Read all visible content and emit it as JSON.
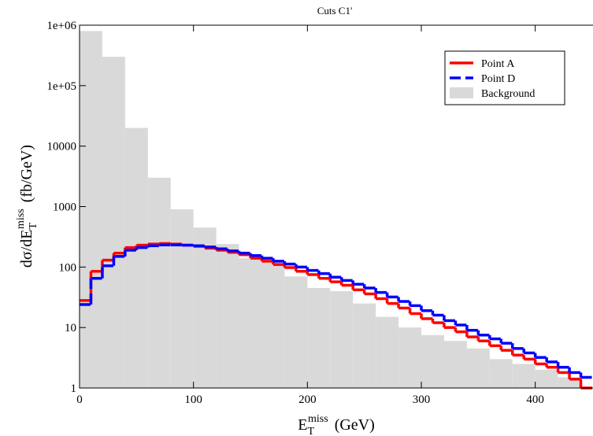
{
  "chart_data": {
    "type": "histogram",
    "title": "Cuts C1'",
    "x_label": {
      "base": "E",
      "sub": "T",
      "sup": "miss",
      "unit": "(GeV)"
    },
    "y_label": {
      "base": "dσ/dE",
      "sub": "T",
      "sup": "miss",
      "unit": "(fb/GeV)"
    },
    "xlim": [
      0,
      450
    ],
    "xticks": [
      0,
      100,
      200,
      300,
      400
    ],
    "ylim": [
      1,
      1000000
    ],
    "log_y": true,
    "yticks": [
      1,
      10,
      100,
      1000,
      10000,
      {
        "value": 100000,
        "label": "1e+05"
      },
      {
        "value": 1000000,
        "label": "1e+06"
      }
    ],
    "legend": "upper right",
    "series": [
      {
        "name": "Point A",
        "color": "#ff0000",
        "style": "solid",
        "bins": [
          0,
          10,
          20,
          30,
          40,
          50,
          60,
          70,
          80,
          90,
          100,
          110,
          120,
          130,
          140,
          150,
          160,
          170,
          180,
          190,
          200,
          210,
          220,
          230,
          240,
          250,
          260,
          270,
          280,
          290,
          300,
          310,
          320,
          330,
          340,
          350,
          360,
          370,
          380,
          390,
          400,
          410,
          420,
          430,
          440,
          450
        ],
        "values": [
          28,
          85,
          130,
          170,
          210,
          230,
          240,
          245,
          240,
          230,
          220,
          205,
          190,
          175,
          160,
          140,
          125,
          110,
          98,
          85,
          75,
          65,
          57,
          50,
          42,
          36,
          30,
          25,
          21,
          17,
          14,
          12,
          10,
          8.5,
          7,
          6,
          5,
          4.2,
          3.5,
          3,
          2.5,
          2.2,
          1.8,
          1.4,
          1.0
        ]
      },
      {
        "name": "Point D",
        "color": "#0000ff",
        "style": "dashed",
        "bins": [
          0,
          10,
          20,
          30,
          40,
          50,
          60,
          70,
          80,
          90,
          100,
          110,
          120,
          130,
          140,
          150,
          160,
          170,
          180,
          190,
          200,
          210,
          220,
          230,
          240,
          250,
          260,
          270,
          280,
          290,
          300,
          310,
          320,
          330,
          340,
          350,
          360,
          370,
          380,
          390,
          400,
          410,
          420,
          430,
          440,
          450
        ],
        "values": [
          24,
          65,
          105,
          150,
          190,
          210,
          225,
          232,
          232,
          230,
          225,
          215,
          200,
          185,
          170,
          155,
          140,
          125,
          112,
          100,
          88,
          78,
          68,
          60,
          52,
          45,
          38,
          32,
          27,
          23,
          19,
          16,
          13,
          11,
          9,
          7.5,
          6.5,
          5.5,
          4.5,
          3.8,
          3.2,
          2.7,
          2.2,
          1.8,
          1.5
        ]
      },
      {
        "name": "Background",
        "color": "#d9d9d9",
        "style": "filled",
        "bins": [
          0,
          20,
          40,
          60,
          80,
          100,
          120,
          140,
          160,
          180,
          200,
          220,
          240,
          260,
          280,
          300,
          320,
          340,
          360,
          380,
          400,
          420,
          440
        ],
        "values": [
          800000,
          300000,
          20000,
          3000,
          900,
          450,
          240,
          140,
          120,
          70,
          45,
          40,
          25,
          15,
          10,
          7.5,
          6,
          4.5,
          3,
          2.5,
          2,
          1.5
        ]
      }
    ]
  }
}
